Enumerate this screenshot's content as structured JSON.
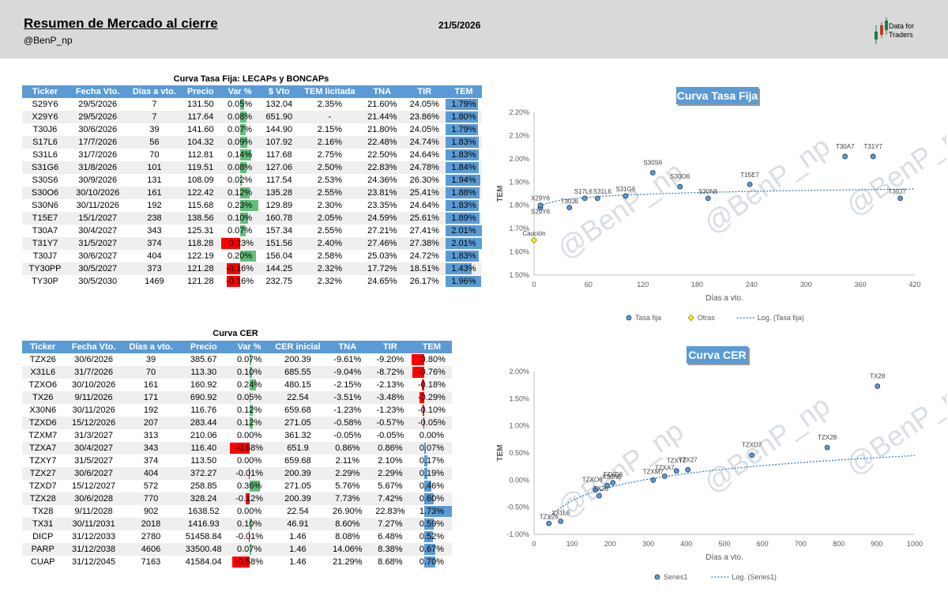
{
  "header": {
    "title": "Resumen de Mercado al cierre",
    "handle": "@BenP_np",
    "date": "21/5/2026",
    "logo_line1": "Data for",
    "logo_line2": "Traders"
  },
  "fixed_table": {
    "title": "Curva Tasa Fija: LECAPs y BONCAPs",
    "columns": [
      "Ticker",
      "Fecha Vto.",
      "Días a vto.",
      "Precio",
      "Var %",
      "$ Vto",
      "TEM licitada",
      "TNA",
      "TIR",
      "TEM"
    ],
    "rows": [
      {
        "ticker": "S29Y6",
        "fecha": "29/5/2026",
        "dias": "7",
        "precio": "131.50",
        "var": "0.05%",
        "vto": "132.04",
        "tem_lic": "2.35%",
        "tna": "21.60%",
        "tir": "24.05%",
        "tem": "1.79%",
        "var_num": 0.05,
        "tem_num": 1.79
      },
      {
        "ticker": "X29Y6",
        "fecha": "29/5/2026",
        "dias": "7",
        "precio": "117.64",
        "var": "0.08%",
        "vto": "651.90",
        "tem_lic": "-",
        "tna": "21.44%",
        "tir": "23.86%",
        "tem": "1.80%",
        "var_num": 0.08,
        "tem_num": 1.8
      },
      {
        "ticker": "T30J6",
        "fecha": "30/6/2026",
        "dias": "39",
        "precio": "141.60",
        "var": "0.07%",
        "vto": "144.90",
        "tem_lic": "2.15%",
        "tna": "21.80%",
        "tir": "24.05%",
        "tem": "1.79%",
        "var_num": 0.07,
        "tem_num": 1.79
      },
      {
        "ticker": "S17L6",
        "fecha": "17/7/2026",
        "dias": "56",
        "precio": "104.32",
        "var": "0.09%",
        "vto": "107.92",
        "tem_lic": "2.16%",
        "tna": "22.48%",
        "tir": "24.74%",
        "tem": "1.83%",
        "var_num": 0.09,
        "tem_num": 1.83
      },
      {
        "ticker": "S31L6",
        "fecha": "31/7/2026",
        "dias": "70",
        "precio": "112.81",
        "var": "0.14%",
        "vto": "117.68",
        "tem_lic": "2.75%",
        "tna": "22.50%",
        "tir": "24.64%",
        "tem": "1.83%",
        "var_num": 0.14,
        "tem_num": 1.83
      },
      {
        "ticker": "S31G6",
        "fecha": "31/8/2026",
        "dias": "101",
        "precio": "119.51",
        "var": "0.08%",
        "vto": "127.06",
        "tem_lic": "2.50%",
        "tna": "22.83%",
        "tir": "24.78%",
        "tem": "1.84%",
        "var_num": 0.08,
        "tem_num": 1.84
      },
      {
        "ticker": "S30S6",
        "fecha": "30/9/2026",
        "dias": "131",
        "precio": "108.09",
        "var": "0.02%",
        "vto": "117.54",
        "tem_lic": "2.53%",
        "tna": "24.36%",
        "tir": "26.30%",
        "tem": "1.94%",
        "var_num": 0.02,
        "tem_num": 1.94
      },
      {
        "ticker": "S30O6",
        "fecha": "30/10/2026",
        "dias": "161",
        "precio": "122.42",
        "var": "0.12%",
        "vto": "135.28",
        "tem_lic": "2.55%",
        "tna": "23.81%",
        "tir": "25.41%",
        "tem": "1.88%",
        "var_num": 0.12,
        "tem_num": 1.88
      },
      {
        "ticker": "S30N6",
        "fecha": "30/11/2026",
        "dias": "192",
        "precio": "115.68",
        "var": "0.23%",
        "vto": "129.89",
        "tem_lic": "2.30%",
        "tna": "23.35%",
        "tir": "24.64%",
        "tem": "1.83%",
        "var_num": 0.23,
        "tem_num": 1.83
      },
      {
        "ticker": "T15E7",
        "fecha": "15/1/2027",
        "dias": "238",
        "precio": "138.56",
        "var": "0.10%",
        "vto": "160.78",
        "tem_lic": "2.05%",
        "tna": "24.59%",
        "tir": "25.61%",
        "tem": "1.89%",
        "var_num": 0.1,
        "tem_num": 1.89
      },
      {
        "ticker": "T30A7",
        "fecha": "30/4/2027",
        "dias": "343",
        "precio": "125.31",
        "var": "0.07%",
        "vto": "157.34",
        "tem_lic": "2.55%",
        "tna": "27.21%",
        "tir": "27.41%",
        "tem": "2.01%",
        "var_num": 0.07,
        "tem_num": 2.01
      },
      {
        "ticker": "T31Y7",
        "fecha": "31/5/2027",
        "dias": "374",
        "precio": "118.28",
        "var": "-0.23%",
        "vto": "151.56",
        "tem_lic": "2.40%",
        "tna": "27.46%",
        "tir": "27.38%",
        "tem": "2.01%",
        "var_num": -0.23,
        "tem_num": 2.01
      },
      {
        "ticker": "T30J7",
        "fecha": "30/6/2027",
        "dias": "404",
        "precio": "122.19",
        "var": "0.20%",
        "vto": "156.04",
        "tem_lic": "2.58%",
        "tna": "25.03%",
        "tir": "24.72%",
        "tem": "1.83%",
        "var_num": 0.2,
        "tem_num": 1.83
      },
      {
        "ticker": "TY30PP",
        "fecha": "30/5/2027",
        "dias": "373",
        "precio": "121.28",
        "var": "-0.16%",
        "vto": "144.25",
        "tem_lic": "2.32%",
        "tna": "17.72%",
        "tir": "18.51%",
        "tem": "1.43%",
        "var_num": -0.16,
        "tem_num": 1.43
      },
      {
        "ticker": "TY30P",
        "fecha": "30/5/2030",
        "dias": "1469",
        "precio": "121.28",
        "var": "-0.16%",
        "vto": "232.75",
        "tem_lic": "2.32%",
        "tna": "24.65%",
        "tir": "26.17%",
        "tem": "1.96%",
        "var_num": -0.16,
        "tem_num": 1.96
      }
    ]
  },
  "cer_table": {
    "title": "Curva CER",
    "columns": [
      "Ticker",
      "Fecha Vto.",
      "Días a vto.",
      "Precio",
      "Var %",
      "CER inicial",
      "TNA",
      "TIR",
      "TEM"
    ],
    "rows": [
      {
        "ticker": "TZX26",
        "fecha": "30/6/2026",
        "dias": "39",
        "precio": "385.67",
        "var": "0.07%",
        "cer": "200.39",
        "tna": "-9.61%",
        "tir": "-9.20%",
        "tem": "-0.80%",
        "var_num": 0.07,
        "tem_num": -0.8
      },
      {
        "ticker": "X31L6",
        "fecha": "31/7/2026",
        "dias": "70",
        "precio": "113.30",
        "var": "0.10%",
        "cer": "685.55",
        "tna": "-9.04%",
        "tir": "-8.72%",
        "tem": "-0.76%",
        "var_num": 0.1,
        "tem_num": -0.76
      },
      {
        "ticker": "TZXO6",
        "fecha": "30/10/2026",
        "dias": "161",
        "precio": "160.92",
        "var": "0.24%",
        "cer": "480.15",
        "tna": "-2.15%",
        "tir": "-2.13%",
        "tem": "-0.18%",
        "var_num": 0.24,
        "tem_num": -0.18
      },
      {
        "ticker": "TX26",
        "fecha": "9/11/2026",
        "dias": "171",
        "precio": "690.92",
        "var": "0.05%",
        "cer": "22.54",
        "tna": "-3.51%",
        "tir": "-3.48%",
        "tem": "-0.29%",
        "var_num": 0.05,
        "tem_num": -0.29
      },
      {
        "ticker": "X30N6",
        "fecha": "30/11/2026",
        "dias": "192",
        "precio": "116.76",
        "var": "0.12%",
        "cer": "659.68",
        "tna": "-1.23%",
        "tir": "-1.23%",
        "tem": "-0.10%",
        "var_num": 0.12,
        "tem_num": -0.1
      },
      {
        "ticker": "TZXD6",
        "fecha": "15/12/2026",
        "dias": "207",
        "precio": "283.44",
        "var": "0.12%",
        "cer": "271.05",
        "tna": "-0.58%",
        "tir": "-0.57%",
        "tem": "-0.05%",
        "var_num": 0.12,
        "tem_num": -0.05
      },
      {
        "ticker": "TZXM7",
        "fecha": "31/3/2027",
        "dias": "313",
        "precio": "210.06",
        "var": "0.00%",
        "cer": "361.32",
        "tna": "-0.05%",
        "tir": "-0.05%",
        "tem": "0.00%",
        "var_num": 0.0,
        "tem_num": 0.0
      },
      {
        "ticker": "TZXA7",
        "fecha": "30/4/2027",
        "dias": "343",
        "precio": "116.40",
        "var": "-0.68%",
        "cer": "651.9",
        "tna": "0.86%",
        "tir": "0.86%",
        "tem": "0.07%",
        "var_num": -0.68,
        "tem_num": 0.07
      },
      {
        "ticker": "TZXY7",
        "fecha": "31/5/2027",
        "dias": "374",
        "precio": "113.50",
        "var": "0.00%",
        "cer": "659.68",
        "tna": "2.11%",
        "tir": "2.10%",
        "tem": "0.17%",
        "var_num": 0.0,
        "tem_num": 0.17
      },
      {
        "ticker": "TZX27",
        "fecha": "30/6/2027",
        "dias": "404",
        "precio": "372.27",
        "var": "-0.01%",
        "cer": "200.39",
        "tna": "2.29%",
        "tir": "2.29%",
        "tem": "0.19%",
        "var_num": -0.01,
        "tem_num": 0.19
      },
      {
        "ticker": "TZXD7",
        "fecha": "15/12/2027",
        "dias": "572",
        "precio": "258.85",
        "var": "0.36%",
        "cer": "271.05",
        "tna": "5.76%",
        "tir": "5.67%",
        "tem": "0.46%",
        "var_num": 0.36,
        "tem_num": 0.46
      },
      {
        "ticker": "TZX28",
        "fecha": "30/6/2028",
        "dias": "770",
        "precio": "328.24",
        "var": "-0.12%",
        "cer": "200.39",
        "tna": "7.73%",
        "tir": "7.42%",
        "tem": "0.60%",
        "var_num": -0.12,
        "tem_num": 0.6
      },
      {
        "ticker": "TX28",
        "fecha": "9/11/2028",
        "dias": "902",
        "precio": "1638.52",
        "var": "0.00%",
        "cer": "22.54",
        "tna": "26.90%",
        "tir": "22.83%",
        "tem": "1.73%",
        "var_num": 0.0,
        "tem_num": 1.73
      },
      {
        "ticker": "TX31",
        "fecha": "30/11/2031",
        "dias": "2018",
        "precio": "1416.93",
        "var": "0.10%",
        "cer": "46.91",
        "tna": "8.60%",
        "tir": "7.27%",
        "tem": "0.59%",
        "var_num": 0.1,
        "tem_num": 0.59
      },
      {
        "ticker": "DICP",
        "fecha": "31/12/2033",
        "dias": "2780",
        "precio": "51458.84",
        "var": "-0.01%",
        "cer": "1.46",
        "tna": "8.08%",
        "tir": "6.48%",
        "tem": "0.52%",
        "var_num": -0.01,
        "tem_num": 0.52
      },
      {
        "ticker": "PARP",
        "fecha": "31/12/2038",
        "dias": "4606",
        "precio": "33500.48",
        "var": "0.07%",
        "cer": "1.46",
        "tna": "14.06%",
        "tir": "8.38%",
        "tem": "0.67%",
        "var_num": 0.07,
        "tem_num": 0.67
      },
      {
        "ticker": "CUAP",
        "fecha": "31/12/2045",
        "dias": "7163",
        "precio": "41584.04",
        "var": "-0.58%",
        "cer": "1.46",
        "tna": "21.29%",
        "tir": "8.68%",
        "tem": "0.70%",
        "var_num": -0.58,
        "tem_num": 0.7
      }
    ]
  },
  "colors": {
    "header_bg": "#d9d9d9",
    "table_header": "#5b9bd5",
    "bar_blue": "#5b9bd5",
    "bar_green": "#63be7b",
    "bar_red": "#ff0000",
    "watermark": "#d9dee6"
  },
  "watermark": "@BenP_np",
  "chart_data": [
    {
      "type": "scatter",
      "title": "Curva Tasa Fija",
      "xlabel": "Días a vto.",
      "ylabel": "TEM",
      "xlim": [
        0,
        420
      ],
      "ylim": [
        1.5,
        2.2
      ],
      "xticks": [
        "0",
        "60",
        "120",
        "180",
        "240",
        "300",
        "360",
        "420"
      ],
      "yticks": [
        "1.50%",
        "1.60%",
        "1.70%",
        "1.80%",
        "1.90%",
        "2.00%",
        "2.10%",
        "2.20%"
      ],
      "series": [
        {
          "name": "Tasa fija",
          "points": [
            {
              "x": 7,
              "y": 1.79,
              "label": "S29Y6"
            },
            {
              "x": 7,
              "y": 1.8,
              "label": "X29Y6"
            },
            {
              "x": 39,
              "y": 1.79,
              "label": "T30J6"
            },
            {
              "x": 56,
              "y": 1.83,
              "label": "S17L6"
            },
            {
              "x": 70,
              "y": 1.83,
              "label": "S31L6"
            },
            {
              "x": 101,
              "y": 1.84,
              "label": "S31G6"
            },
            {
              "x": 131,
              "y": 1.94,
              "label": "S30S6"
            },
            {
              "x": 161,
              "y": 1.88,
              "label": "S30O6"
            },
            {
              "x": 192,
              "y": 1.83,
              "label": "S30N6"
            },
            {
              "x": 238,
              "y": 1.89,
              "label": "T15E7"
            },
            {
              "x": 343,
              "y": 2.01,
              "label": "T30A7"
            },
            {
              "x": 374,
              "y": 2.01,
              "label": "T31Y7"
            },
            {
              "x": 404,
              "y": 1.83,
              "label": "T30J7"
            }
          ]
        },
        {
          "name": "Otras",
          "points": [
            {
              "x": 0,
              "y": 1.65,
              "label": "Caución"
            }
          ]
        }
      ],
      "trendline": {
        "name": "Log. (Tasa fija)",
        "from": [
          7,
          1.795
        ],
        "to": [
          420,
          1.87
        ]
      },
      "grid": false,
      "legend": "bottom"
    },
    {
      "type": "scatter",
      "title": "Curva CER",
      "xlabel": "Días a vto.",
      "ylabel": "TEM",
      "xlim": [
        0,
        1000
      ],
      "ylim": [
        -1.0,
        2.0
      ],
      "xticks": [
        "0",
        "100",
        "200",
        "300",
        "400",
        "500",
        "600",
        "700",
        "800",
        "900",
        "1000"
      ],
      "yticks": [
        "-1.00%",
        "-0.50%",
        "0.00%",
        "0.50%",
        "1.00%",
        "1.50%",
        "2.00%"
      ],
      "series": [
        {
          "name": "Series1",
          "points": [
            {
              "x": 39,
              "y": -0.8,
              "label": "TZX26"
            },
            {
              "x": 70,
              "y": -0.76,
              "label": "X31L6"
            },
            {
              "x": 161,
              "y": -0.18,
              "label": "TZXO6"
            },
            {
              "x": 171,
              "y": -0.29,
              "label": "TX26"
            },
            {
              "x": 192,
              "y": -0.1,
              "label": "X30N6"
            },
            {
              "x": 207,
              "y": -0.05,
              "label": "TZXD6"
            },
            {
              "x": 313,
              "y": 0.0,
              "label": "TZXM7"
            },
            {
              "x": 343,
              "y": 0.07,
              "label": "TZXA7"
            },
            {
              "x": 374,
              "y": 0.17,
              "label": "TZXY7"
            },
            {
              "x": 404,
              "y": 0.19,
              "label": "TZX27"
            },
            {
              "x": 572,
              "y": 0.46,
              "label": "TZXD7"
            },
            {
              "x": 770,
              "y": 0.6,
              "label": "TZX28"
            },
            {
              "x": 902,
              "y": 1.73,
              "label": "TX28"
            }
          ]
        }
      ],
      "trendline": {
        "name": "Log. (Series1)",
        "from": [
          39,
          -0.72
        ],
        "to": [
          1000,
          0.45
        ]
      },
      "grid": false,
      "legend": "bottom"
    }
  ]
}
